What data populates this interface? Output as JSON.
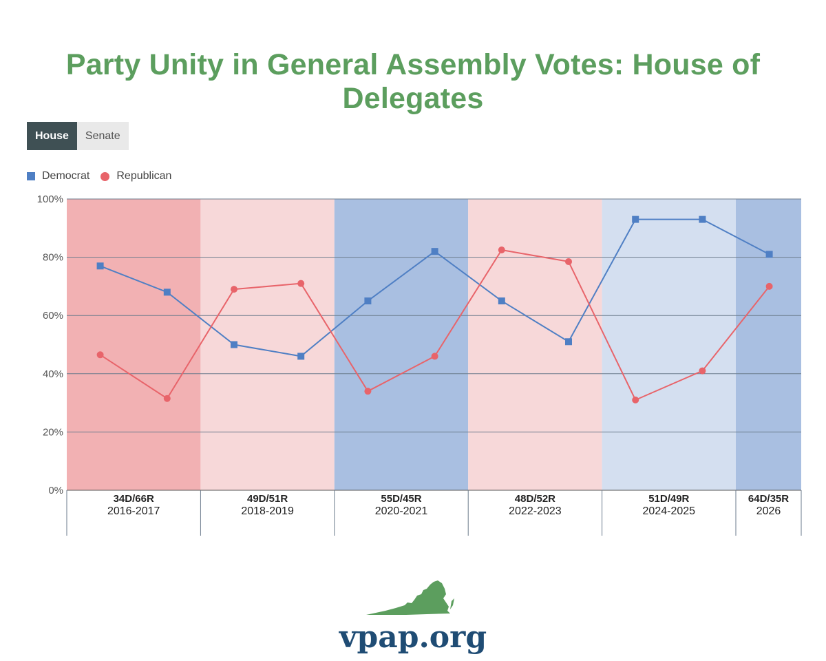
{
  "title": "Party Unity in General Assembly Votes: House of Delegates",
  "toggle": {
    "house_label": "House",
    "senate_label": "Senate"
  },
  "legend": {
    "democrat": "Democrat",
    "republican": "Republican"
  },
  "colors": {
    "democrat": "#4f7fc4",
    "republican": "#e8646a",
    "title": "#5c9e5e",
    "band_rep_strong": "#f2b1b3",
    "band_rep_light": "#f7d8d9",
    "band_dem_strong": "#a9bfe1",
    "band_dem_light": "#d4dff0"
  },
  "logo": {
    "text": "vpap.org"
  },
  "chart_data": {
    "type": "line",
    "ylim": [
      0,
      100
    ],
    "yticks": [
      "0%",
      "20%",
      "40%",
      "60%",
      "80%",
      "100%"
    ],
    "ytick_values": [
      0,
      20,
      40,
      60,
      80,
      100
    ],
    "periods": [
      {
        "seats": "34D/66R",
        "years": "2016-2017",
        "points": 2,
        "majority": "rep_strong"
      },
      {
        "seats": "49D/51R",
        "years": "2018-2019",
        "points": 2,
        "majority": "rep_light"
      },
      {
        "seats": "55D/45R",
        "years": "2020-2021",
        "points": 2,
        "majority": "dem_strong"
      },
      {
        "seats": "48D/52R",
        "years": "2022-2023",
        "points": 2,
        "majority": "rep_light"
      },
      {
        "seats": "51D/49R",
        "years": "2024-2025",
        "points": 2,
        "majority": "dem_light"
      },
      {
        "seats": "64D/35R",
        "years": "2026",
        "points": 1,
        "majority": "dem_strong"
      }
    ],
    "series": [
      {
        "name": "Democrat",
        "marker": "square",
        "values": [
          77,
          68,
          50,
          46,
          65,
          82,
          65,
          51,
          93,
          93,
          81
        ]
      },
      {
        "name": "Republican",
        "marker": "circle",
        "values": [
          46.5,
          31.5,
          69,
          71,
          34,
          46,
          82.5,
          78.5,
          31,
          41,
          70
        ]
      }
    ]
  }
}
